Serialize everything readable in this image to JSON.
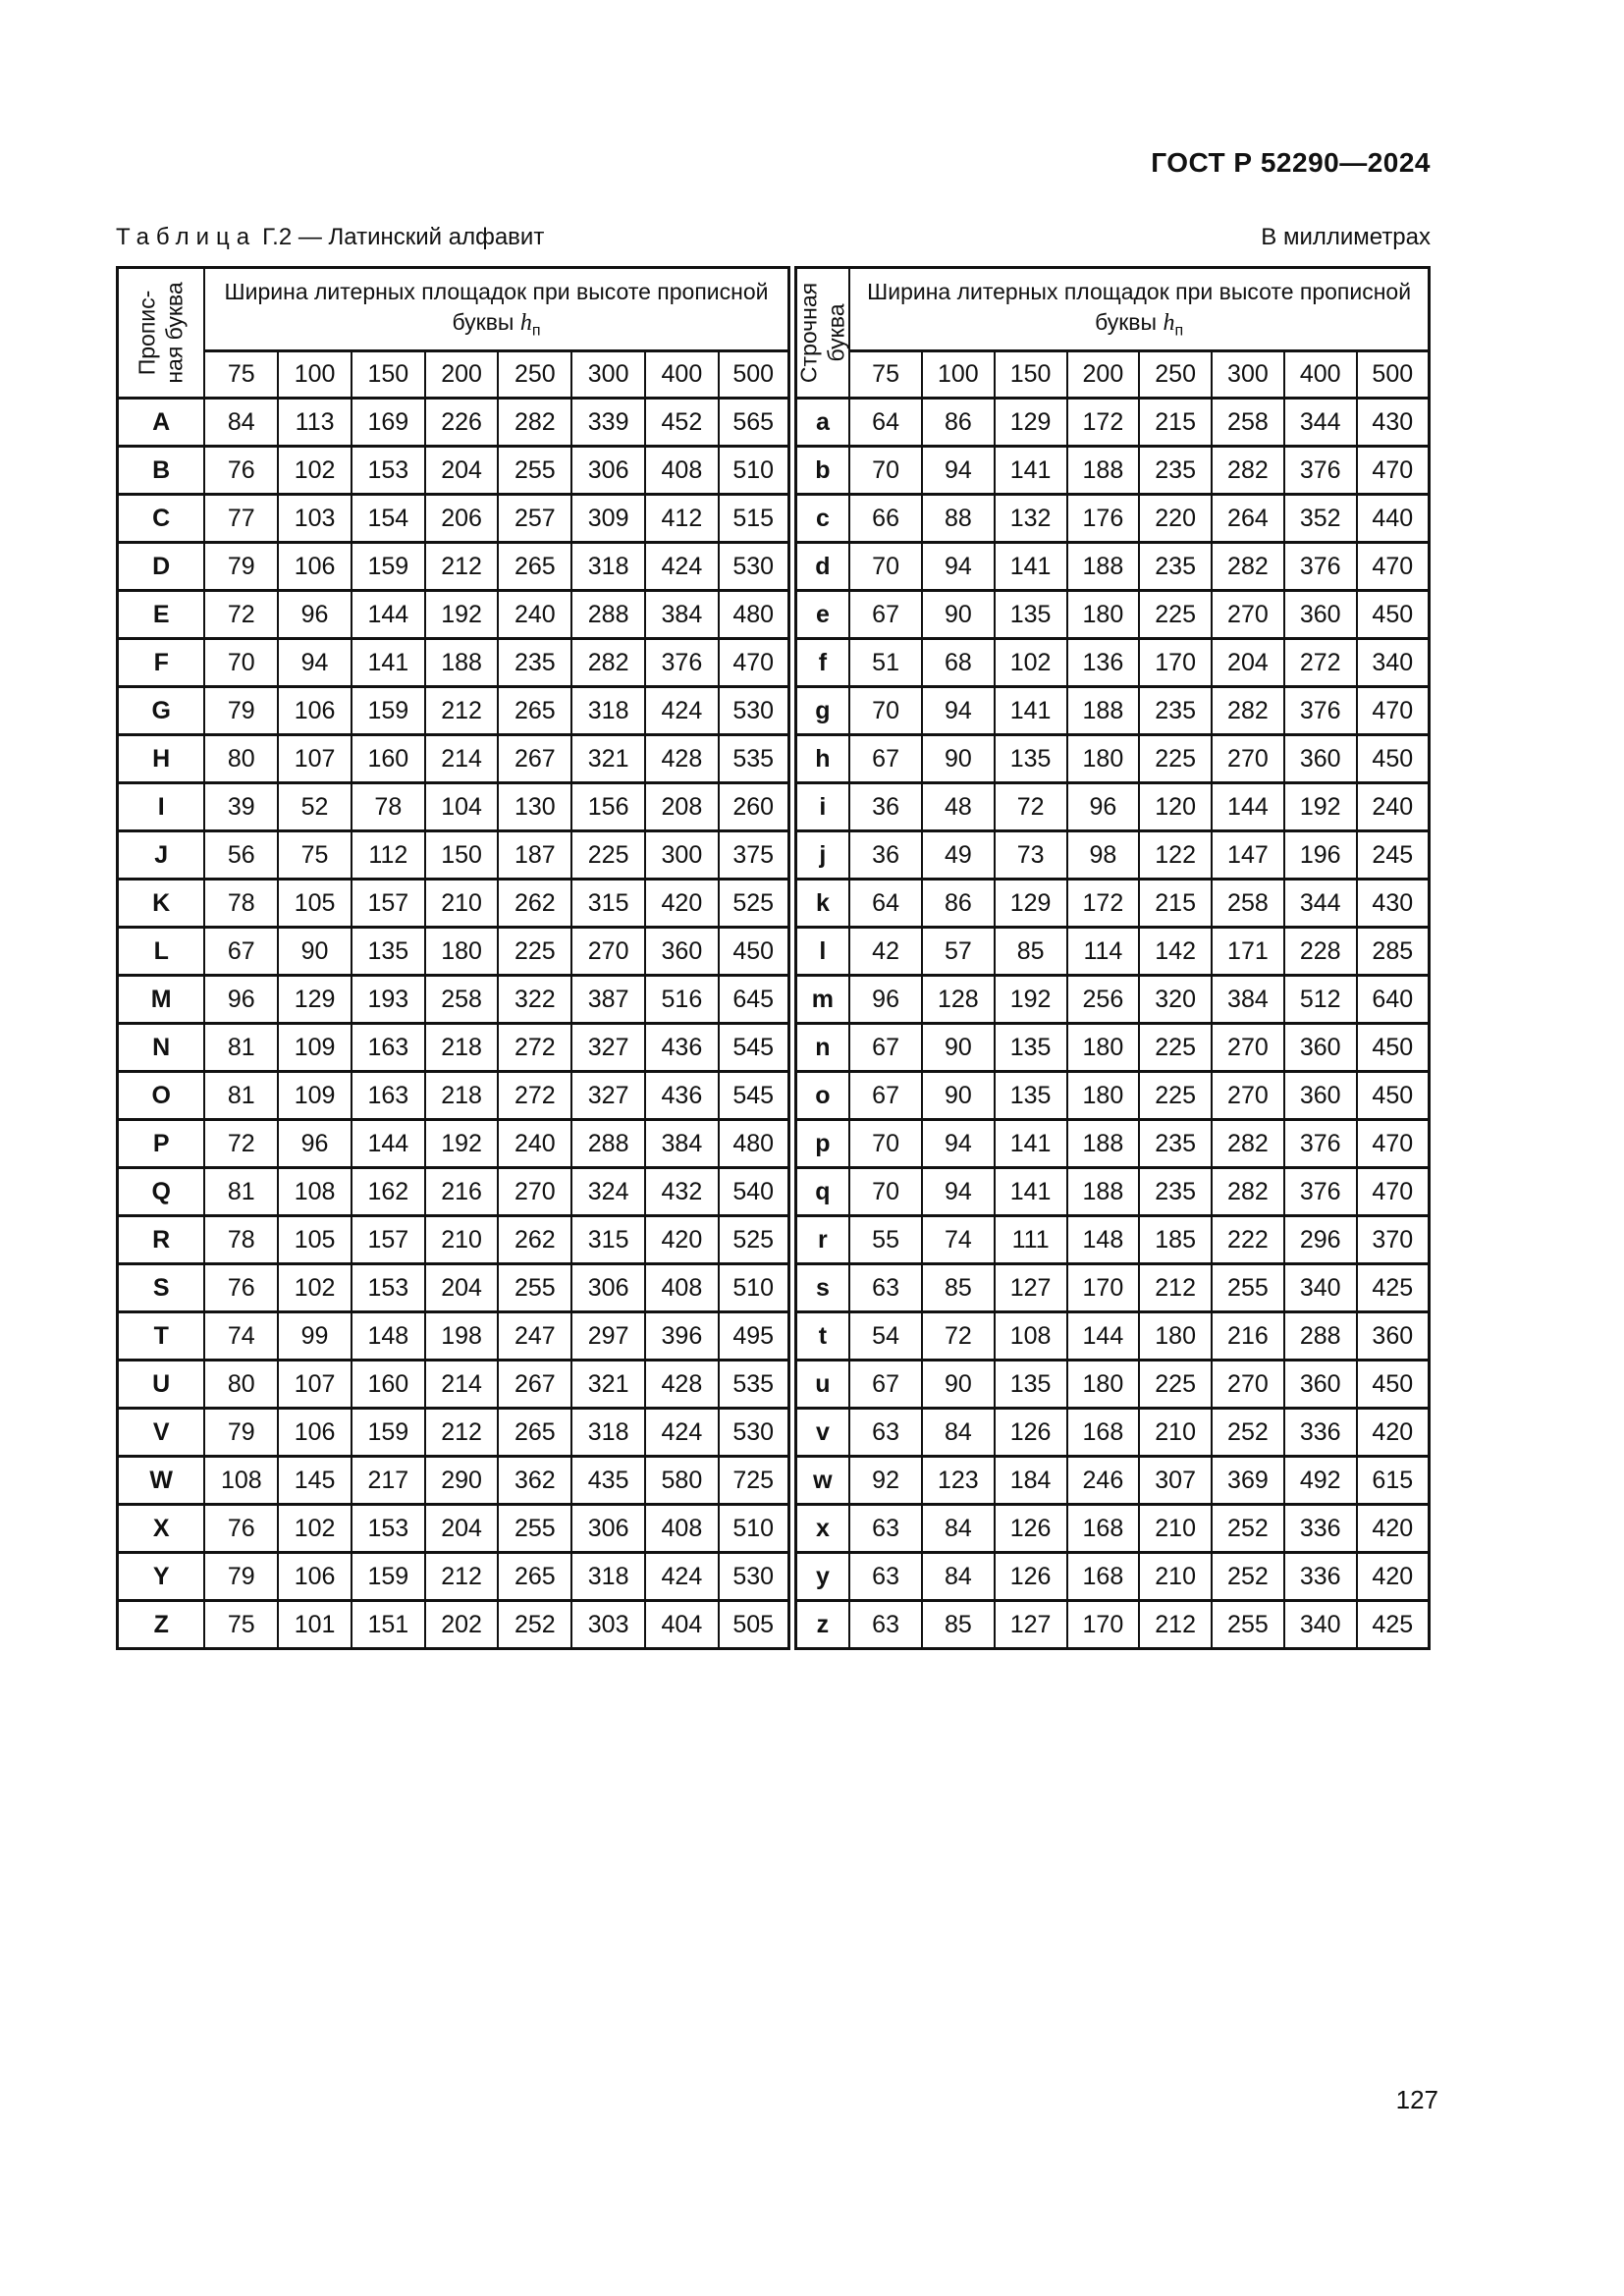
{
  "page": {
    "doc_code": "ГОСТ Р 52290—2024",
    "page_number": "127"
  },
  "caption": {
    "word": "Таблица",
    "rest": "Г.2 — Латинский алфавит",
    "units": "В миллиметрах"
  },
  "table": {
    "upper_letter_header": "Пропис-\nная буква",
    "lower_letter_header": "Строчная\nбуква",
    "width_header": "Ширина литерных площадок при высоте прописной",
    "width_header_line2_prefix": "буквы",
    "height_symbol": "h",
    "height_symbol_sub": "п",
    "size_headers": [
      "75",
      "100",
      "150",
      "200",
      "250",
      "300",
      "400",
      "500"
    ],
    "rows": [
      {
        "upper": "A",
        "upper_widths": [
          84,
          113,
          169,
          226,
          282,
          339,
          452,
          565
        ],
        "lower": "a",
        "lower_widths": [
          64,
          86,
          129,
          172,
          215,
          258,
          344,
          430
        ]
      },
      {
        "upper": "B",
        "upper_widths": [
          76,
          102,
          153,
          204,
          255,
          306,
          408,
          510
        ],
        "lower": "b",
        "lower_widths": [
          70,
          94,
          141,
          188,
          235,
          282,
          376,
          470
        ]
      },
      {
        "upper": "C",
        "upper_widths": [
          77,
          103,
          154,
          206,
          257,
          309,
          412,
          515
        ],
        "lower": "c",
        "lower_widths": [
          66,
          88,
          132,
          176,
          220,
          264,
          352,
          440
        ]
      },
      {
        "upper": "D",
        "upper_widths": [
          79,
          106,
          159,
          212,
          265,
          318,
          424,
          530
        ],
        "lower": "d",
        "lower_widths": [
          70,
          94,
          141,
          188,
          235,
          282,
          376,
          470
        ]
      },
      {
        "upper": "E",
        "upper_widths": [
          72,
          96,
          144,
          192,
          240,
          288,
          384,
          480
        ],
        "lower": "e",
        "lower_widths": [
          67,
          90,
          135,
          180,
          225,
          270,
          360,
          450
        ]
      },
      {
        "upper": "F",
        "upper_widths": [
          70,
          94,
          141,
          188,
          235,
          282,
          376,
          470
        ],
        "lower": "f",
        "lower_widths": [
          51,
          68,
          102,
          136,
          170,
          204,
          272,
          340
        ]
      },
      {
        "upper": "G",
        "upper_widths": [
          79,
          106,
          159,
          212,
          265,
          318,
          424,
          530
        ],
        "lower": "g",
        "lower_widths": [
          70,
          94,
          141,
          188,
          235,
          282,
          376,
          470
        ]
      },
      {
        "upper": "H",
        "upper_widths": [
          80,
          107,
          160,
          214,
          267,
          321,
          428,
          535
        ],
        "lower": "h",
        "lower_widths": [
          67,
          90,
          135,
          180,
          225,
          270,
          360,
          450
        ]
      },
      {
        "upper": "I",
        "upper_widths": [
          39,
          52,
          78,
          104,
          130,
          156,
          208,
          260
        ],
        "lower": "i",
        "lower_widths": [
          36,
          48,
          72,
          96,
          120,
          144,
          192,
          240
        ]
      },
      {
        "upper": "J",
        "upper_widths": [
          56,
          75,
          112,
          150,
          187,
          225,
          300,
          375
        ],
        "lower": "j",
        "lower_widths": [
          36,
          49,
          73,
          98,
          122,
          147,
          196,
          245
        ]
      },
      {
        "upper": "K",
        "upper_widths": [
          78,
          105,
          157,
          210,
          262,
          315,
          420,
          525
        ],
        "lower": "k",
        "lower_widths": [
          64,
          86,
          129,
          172,
          215,
          258,
          344,
          430
        ]
      },
      {
        "upper": "L",
        "upper_widths": [
          67,
          90,
          135,
          180,
          225,
          270,
          360,
          450
        ],
        "lower": "l",
        "lower_widths": [
          42,
          57,
          85,
          114,
          142,
          171,
          228,
          285
        ]
      },
      {
        "upper": "M",
        "upper_widths": [
          96,
          129,
          193,
          258,
          322,
          387,
          516,
          645
        ],
        "lower": "m",
        "lower_widths": [
          96,
          128,
          192,
          256,
          320,
          384,
          512,
          640
        ]
      },
      {
        "upper": "N",
        "upper_widths": [
          81,
          109,
          163,
          218,
          272,
          327,
          436,
          545
        ],
        "lower": "n",
        "lower_widths": [
          67,
          90,
          135,
          180,
          225,
          270,
          360,
          450
        ]
      },
      {
        "upper": "O",
        "upper_widths": [
          81,
          109,
          163,
          218,
          272,
          327,
          436,
          545
        ],
        "lower": "o",
        "lower_widths": [
          67,
          90,
          135,
          180,
          225,
          270,
          360,
          450
        ]
      },
      {
        "upper": "P",
        "upper_widths": [
          72,
          96,
          144,
          192,
          240,
          288,
          384,
          480
        ],
        "lower": "p",
        "lower_widths": [
          70,
          94,
          141,
          188,
          235,
          282,
          376,
          470
        ]
      },
      {
        "upper": "Q",
        "upper_widths": [
          81,
          108,
          162,
          216,
          270,
          324,
          432,
          540
        ],
        "lower": "q",
        "lower_widths": [
          70,
          94,
          141,
          188,
          235,
          282,
          376,
          470
        ]
      },
      {
        "upper": "R",
        "upper_widths": [
          78,
          105,
          157,
          210,
          262,
          315,
          420,
          525
        ],
        "lower": "r",
        "lower_widths": [
          55,
          74,
          111,
          148,
          185,
          222,
          296,
          370
        ]
      },
      {
        "upper": "S",
        "upper_widths": [
          76,
          102,
          153,
          204,
          255,
          306,
          408,
          510
        ],
        "lower": "s",
        "lower_widths": [
          63,
          85,
          127,
          170,
          212,
          255,
          340,
          425
        ]
      },
      {
        "upper": "T",
        "upper_widths": [
          74,
          99,
          148,
          198,
          247,
          297,
          396,
          495
        ],
        "lower": "t",
        "lower_widths": [
          54,
          72,
          108,
          144,
          180,
          216,
          288,
          360
        ]
      },
      {
        "upper": "U",
        "upper_widths": [
          80,
          107,
          160,
          214,
          267,
          321,
          428,
          535
        ],
        "lower": "u",
        "lower_widths": [
          67,
          90,
          135,
          180,
          225,
          270,
          360,
          450
        ]
      },
      {
        "upper": "V",
        "upper_widths": [
          79,
          106,
          159,
          212,
          265,
          318,
          424,
          530
        ],
        "lower": "v",
        "lower_widths": [
          63,
          84,
          126,
          168,
          210,
          252,
          336,
          420
        ]
      },
      {
        "upper": "W",
        "upper_widths": [
          108,
          145,
          217,
          290,
          362,
          435,
          580,
          725
        ],
        "lower": "w",
        "lower_widths": [
          92,
          123,
          184,
          246,
          307,
          369,
          492,
          615
        ]
      },
      {
        "upper": "X",
        "upper_widths": [
          76,
          102,
          153,
          204,
          255,
          306,
          408,
          510
        ],
        "lower": "x",
        "lower_widths": [
          63,
          84,
          126,
          168,
          210,
          252,
          336,
          420
        ]
      },
      {
        "upper": "Y",
        "upper_widths": [
          79,
          106,
          159,
          212,
          265,
          318,
          424,
          530
        ],
        "lower": "y",
        "lower_widths": [
          63,
          84,
          126,
          168,
          210,
          252,
          336,
          420
        ]
      },
      {
        "upper": "Z",
        "upper_widths": [
          75,
          101,
          151,
          202,
          252,
          303,
          404,
          505
        ],
        "lower": "z",
        "lower_widths": [
          63,
          85,
          127,
          170,
          212,
          255,
          340,
          425
        ]
      }
    ]
  }
}
